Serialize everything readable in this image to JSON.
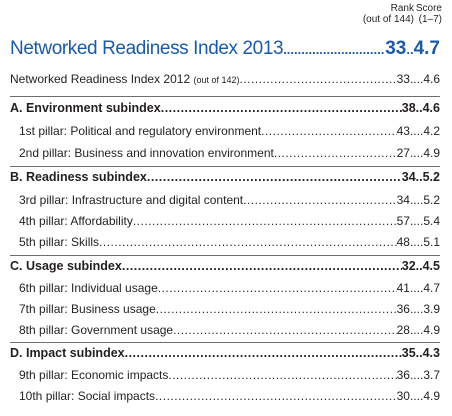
{
  "header": {
    "rank_label": "Rank",
    "rank_sub": "(out of 144)",
    "score_label": "Score",
    "score_sub": "(1–7)"
  },
  "nri_2013": {
    "label": "Networked Readiness Index 2013",
    "rank": "33",
    "score": "4.7"
  },
  "nri_2012": {
    "label": "Networked Readiness Index 2012",
    "note": "(out of 142)",
    "rank": "33",
    "score": "4.6"
  },
  "subindexes": [
    {
      "label": "A. Environment subindex",
      "rank": "38",
      "score": "4.6",
      "pillars": [
        {
          "label": "1st pillar: Political and regulatory environment",
          "rank": "43",
          "score": "4.2"
        },
        {
          "label": "2nd pillar: Business and innovation environment",
          "rank": "27",
          "score": "4.9"
        }
      ]
    },
    {
      "label": "B. Readiness subindex",
      "rank": "34",
      "score": "5.2",
      "pillars": [
        {
          "label": "3rd pillar: Infrastructure and digital content",
          "rank": "34",
          "score": "5.2"
        },
        {
          "label": "4th pillar: Affordability",
          "rank": "57",
          "score": "5.4"
        },
        {
          "label": "5th pillar: Skills",
          "rank": "48",
          "score": "5.1"
        }
      ]
    },
    {
      "label": "C. Usage subindex",
      "rank": "32",
      "score": "4.5",
      "pillars": [
        {
          "label": "6th pillar: Individual usage",
          "rank": "41",
          "score": "4.7"
        },
        {
          "label": "7th pillar: Business usage",
          "rank": "36",
          "score": "3.9"
        },
        {
          "label": "8th pillar: Government usage",
          "rank": "28",
          "score": "4.9"
        }
      ]
    },
    {
      "label": "D. Impact subindex",
      "rank": "35",
      "score": "4.3",
      "pillars": [
        {
          "label": "9th pillar: Economic impacts",
          "rank": "36",
          "score": "3.7"
        },
        {
          "label": "10th pillar: Social impacts",
          "rank": "30",
          "score": "4.9"
        }
      ]
    }
  ]
}
